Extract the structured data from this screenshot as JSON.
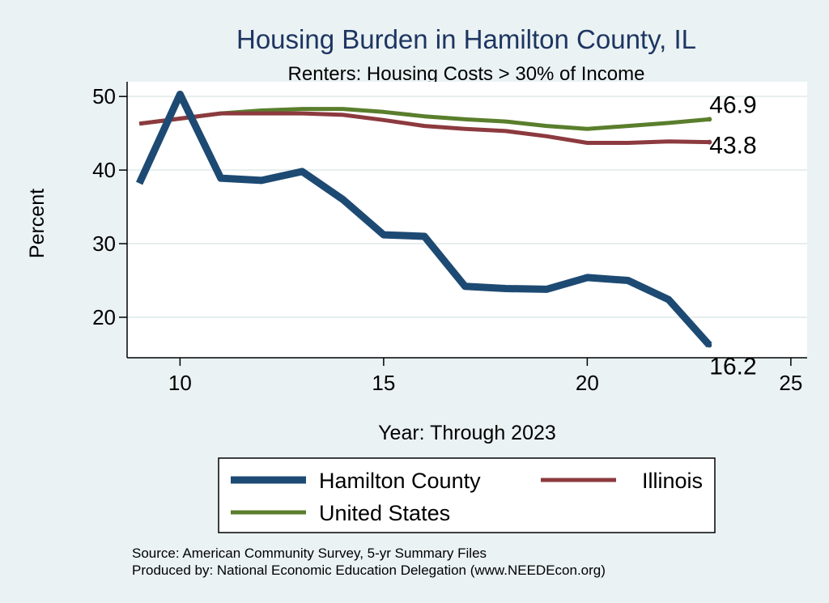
{
  "chart_data": {
    "type": "line",
    "title": "Housing Burden in Hamilton County, IL",
    "subtitle": "Renters: Housing Costs > 30% of Income",
    "xlabel": "Year: Through 2023",
    "ylabel": "Percent",
    "xlim": [
      8.7,
      25.4
    ],
    "ylim": [
      14.5,
      52
    ],
    "xticks": [
      10,
      15,
      20,
      25
    ],
    "yticks": [
      20,
      30,
      40,
      50
    ],
    "grid": true,
    "x": [
      9,
      10,
      11,
      12,
      13,
      14,
      15,
      16,
      17,
      18,
      19,
      20,
      21,
      22,
      23
    ],
    "series": [
      {
        "name": "Hamilton County",
        "color": "#1d4a73",
        "values": [
          38.2,
          50.3,
          38.9,
          38.6,
          39.8,
          36.0,
          31.2,
          31.0,
          24.2,
          23.9,
          23.8,
          25.4,
          25.0,
          22.4,
          16.2
        ],
        "end_label": "16.2"
      },
      {
        "name": "Illinois",
        "color": "#8c3a3f",
        "values": [
          46.3,
          47.0,
          47.7,
          47.7,
          47.7,
          47.5,
          46.8,
          46.0,
          45.6,
          45.3,
          44.6,
          43.7,
          43.7,
          43.9,
          43.8
        ],
        "end_label": "43.8"
      },
      {
        "name": "United States",
        "color": "#5a7e2c",
        "values": [
          46.3,
          47.0,
          47.7,
          48.1,
          48.3,
          48.3,
          47.9,
          47.3,
          46.9,
          46.6,
          46.0,
          45.6,
          46.0,
          46.4,
          46.9
        ],
        "end_label": "46.9"
      }
    ],
    "legend": {
      "position": "bottom",
      "order": [
        "Hamilton County",
        "Illinois",
        "United States"
      ]
    },
    "notes": [
      "Source: American Community Survey, 5-yr Summary Files",
      "Produced by: National Economic Education Delegation (www.NEEDEcon.org)"
    ]
  }
}
